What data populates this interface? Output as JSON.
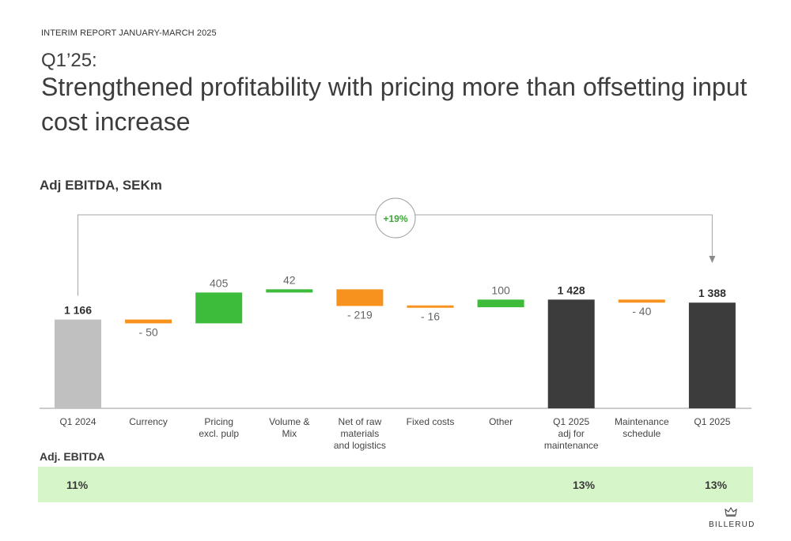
{
  "header": {
    "report_label": "INTERIM REPORT JANUARY-MARCH 2025",
    "subheading": "Q1’25:",
    "headline": "Strengthened profitability with pricing more than offsetting input cost increase"
  },
  "chart_data": {
    "type": "bar",
    "title": "Adj EBITDA, SEKm",
    "categories": [
      "Q1 2024",
      "Currency",
      "Pricing excl. pulp",
      "Volume & Mix",
      "Net of raw materials and logistics",
      "Fixed costs",
      "Other",
      "Q1 2025 adj for maintenance",
      "Maintenance schedule",
      "Q1 2025"
    ],
    "category_lines": [
      [
        "Q1 2024"
      ],
      [
        "Currency"
      ],
      [
        "Pricing",
        "excl. pulp"
      ],
      [
        "Volume &",
        "Mix"
      ],
      [
        "Net of raw",
        "materials",
        "and logistics"
      ],
      [
        "Fixed costs"
      ],
      [
        "Other"
      ],
      [
        "Q1 2025",
        "adj for",
        "maintenance"
      ],
      [
        "Maintenance",
        "schedule"
      ],
      [
        "Q1 2025"
      ]
    ],
    "values": [
      1166,
      -50,
      405,
      42,
      -219,
      -16,
      100,
      1428,
      -40,
      1388
    ],
    "kinds": [
      "total",
      "delta",
      "delta",
      "delta",
      "delta",
      "delta",
      "delta",
      "total",
      "delta",
      "total"
    ],
    "labels": [
      "1 166",
      "- 50",
      "405",
      "42",
      "- 219",
      "- 16",
      "100",
      "1 428",
      "- 40",
      "1 388"
    ],
    "annotation": "+19%",
    "colors": {
      "start_total": "#c0c0c0",
      "total": "#3c3c3c",
      "increase": "#3dbb3a",
      "decrease": "#f7921e",
      "connector": "#a6a6a6"
    }
  },
  "table": {
    "label": "Adj. EBITDA",
    "values": [
      {
        "category": "Q1 2024",
        "value": "11%"
      },
      {
        "category": "Q1 2025 adj for maintenance",
        "value": "13%"
      },
      {
        "category": "Q1 2025",
        "value": "13%"
      }
    ]
  },
  "logo": {
    "text": "BILLERUD",
    "icon": "crown-icon"
  }
}
